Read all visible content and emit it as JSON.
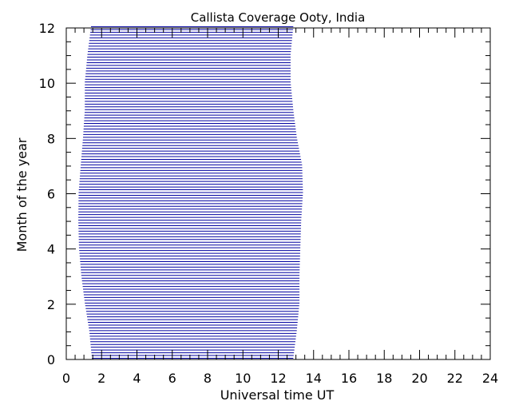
{
  "chart_data": {
    "type": "line",
    "title": "Callista Coverage Ooty, India",
    "xlabel": "Universal time UT",
    "ylabel": "Month of the year",
    "xlim": [
      0,
      24
    ],
    "ylim": [
      0,
      12
    ],
    "x_ticks": [
      "0",
      "2",
      "4",
      "6",
      "8",
      "10",
      "12",
      "14",
      "16",
      "18",
      "20",
      "22",
      "24"
    ],
    "y_ticks": [
      "0",
      "2",
      "4",
      "6",
      "8",
      "10",
      "12"
    ],
    "grid": false,
    "line_color": "#0000a0",
    "month_step": 0.1,
    "coverage_profile": [
      {
        "month": 0,
        "start": 1.45,
        "end": 12.85
      },
      {
        "month": 1,
        "start": 1.3,
        "end": 13.05
      },
      {
        "month": 2,
        "start": 1.05,
        "end": 13.2
      },
      {
        "month": 3,
        "start": 0.85,
        "end": 13.2
      },
      {
        "month": 4,
        "start": 0.72,
        "end": 13.25
      },
      {
        "month": 5,
        "start": 0.68,
        "end": 13.3
      },
      {
        "month": 6,
        "start": 0.7,
        "end": 13.4
      },
      {
        "month": 7,
        "start": 0.82,
        "end": 13.35
      },
      {
        "month": 8,
        "start": 0.95,
        "end": 13.05
      },
      {
        "month": 9,
        "start": 1.05,
        "end": 12.85
      },
      {
        "month": 10,
        "start": 1.05,
        "end": 12.7
      },
      {
        "month": 11,
        "start": 1.2,
        "end": 12.7
      },
      {
        "month": 12,
        "start": 1.4,
        "end": 12.85
      }
    ]
  }
}
